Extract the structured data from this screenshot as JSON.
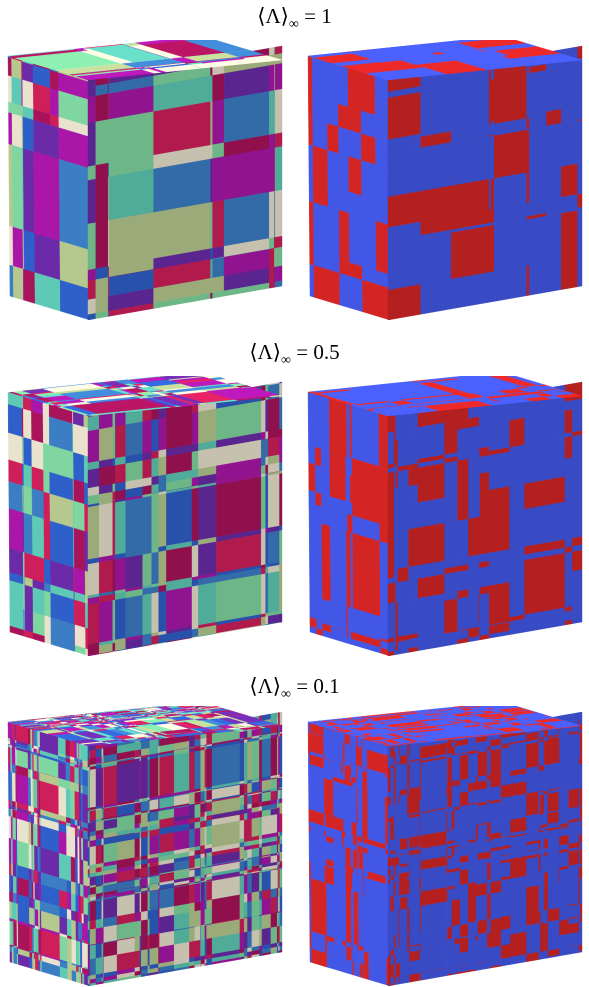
{
  "figure": {
    "panels": [
      {
        "title": {
          "prefix": "⟨Λ⟩",
          "subscript": "∞",
          "value": "= 1"
        },
        "mean_interface": 1.0,
        "left": {
          "style": "multicolor"
        },
        "right": {
          "style": "two-phase"
        }
      },
      {
        "title": {
          "prefix": "⟨Λ⟩",
          "subscript": "∞",
          "value": "= 0.5"
        },
        "mean_interface": 0.5,
        "left": {
          "style": "multicolor"
        },
        "right": {
          "style": "two-phase"
        }
      },
      {
        "title": {
          "prefix": "⟨Λ⟩",
          "subscript": "∞",
          "value": "= 0.1"
        },
        "mean_interface": 0.1,
        "left": {
          "style": "multicolor"
        },
        "right": {
          "style": "two-phase"
        }
      }
    ],
    "multicolor_palette": [
      "#b5c98e",
      "#5ec9b4",
      "#a8135a",
      "#3b7ec4",
      "#7fd6a0",
      "#e9e2cd",
      "#6b2ba8",
      "#a916a8",
      "#2f5fc9",
      "#cf1f5a"
    ],
    "two_phase_colors": {
      "matrix": "#4257e6",
      "inclusion": "#d42525"
    }
  }
}
